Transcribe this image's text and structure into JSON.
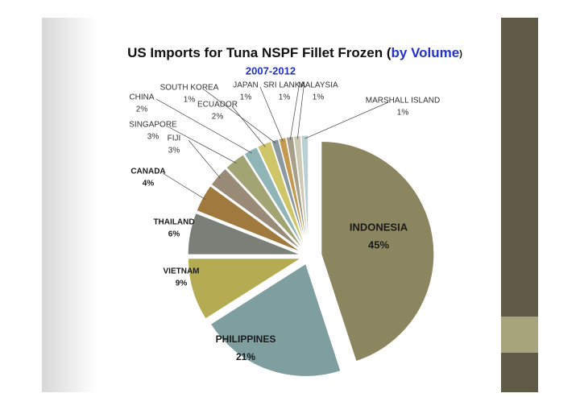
{
  "chart_data": {
    "type": "pie",
    "title": [
      "US Imports for Tuna NSPF Fillet Frozen (",
      "by Volume",
      ")"
    ],
    "subtitle": "2007-2012",
    "categories": [
      "INDONESIA",
      "PHILIPPINES",
      "VIETNAM",
      "THAILAND",
      "CANADA",
      "FIJI",
      "SINGAPORE",
      "CHINA",
      "ECUADOR",
      "SOUTH KOREA",
      "JAPAN",
      "SRI LANKA",
      "MALAYSIA",
      "MARSHALL ISLAND"
    ],
    "values": [
      45,
      21,
      9,
      6,
      4,
      3,
      3,
      2,
      2,
      1,
      1,
      1,
      1,
      1
    ],
    "value_labels": [
      "45%",
      "21%",
      "9%",
      "6%",
      "4%",
      "3%",
      "3%",
      "2%",
      "2%",
      "1%",
      "1%",
      "1%",
      "1%",
      "1%"
    ],
    "colors": [
      "#8c8660",
      "#7e9ea0",
      "#b5ab52",
      "#7a8077",
      "#a0793e",
      "#9a8a78",
      "#a3a474",
      "#8fb5b7",
      "#cfc66a",
      "#8a9aa0",
      "#c59a50",
      "#a6a08a",
      "#cdcab4",
      "#b8d0d4"
    ]
  }
}
